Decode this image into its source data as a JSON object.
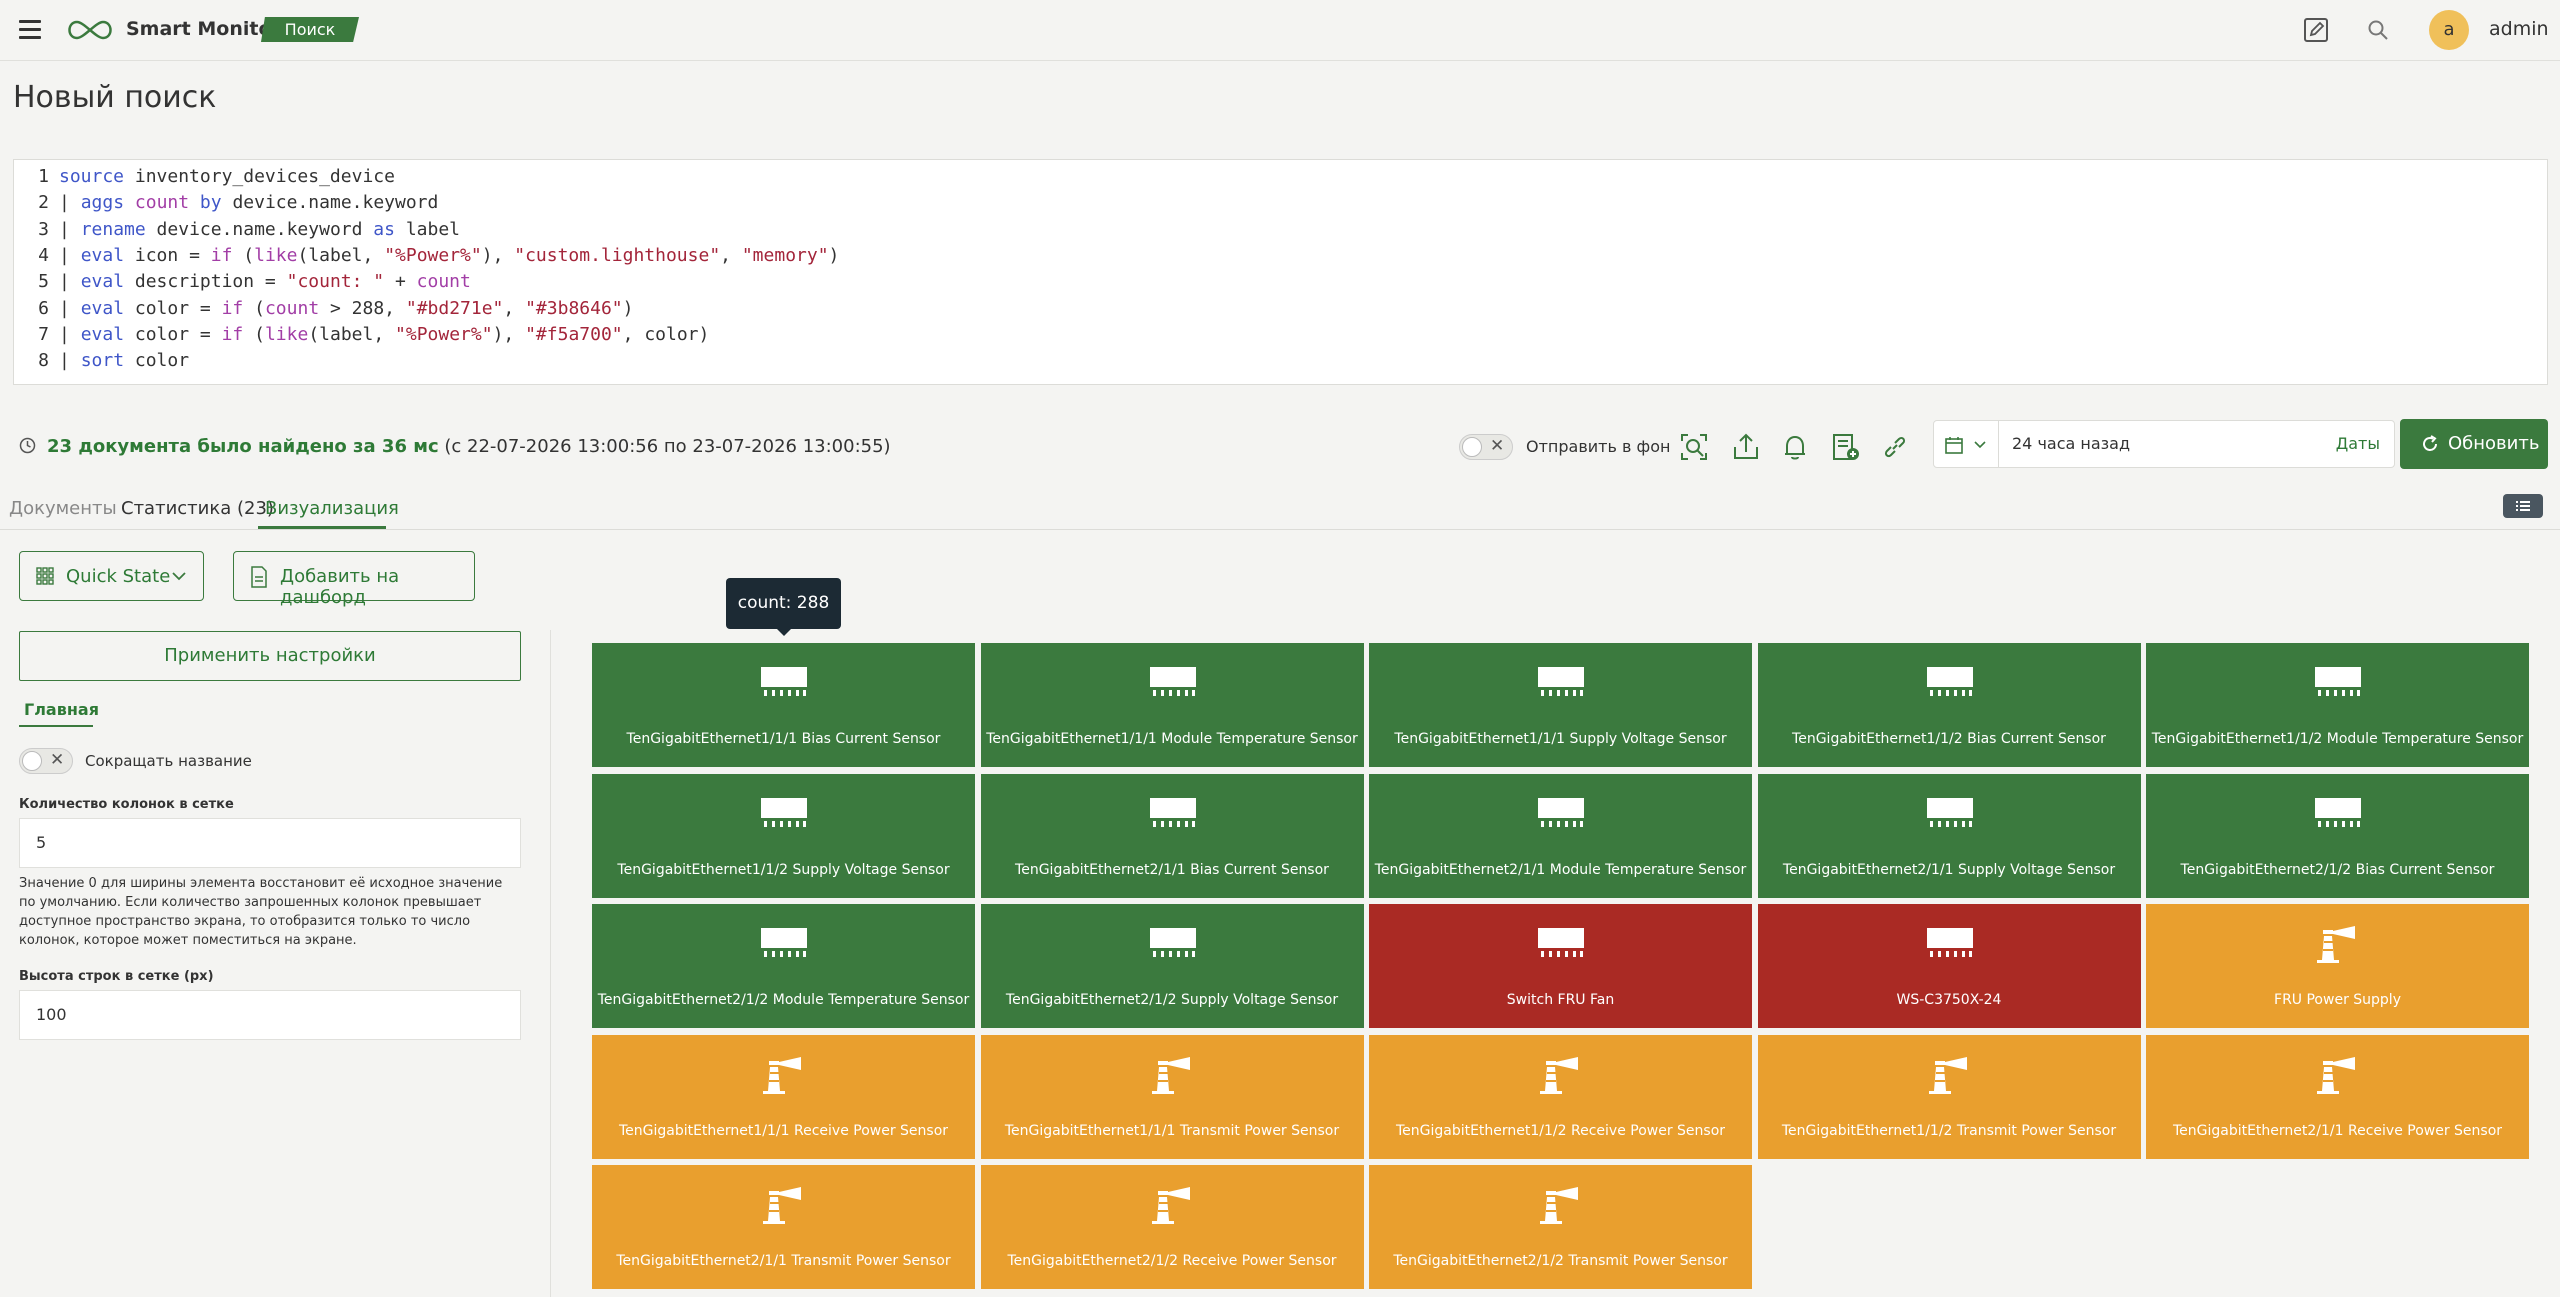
{
  "header": {
    "app_title": "Smart Monitor",
    "nav_badge": "Поиск",
    "avatar_letter": "a",
    "username": "admin"
  },
  "page": {
    "title": "Новый поиск"
  },
  "query": {
    "lines": [
      [
        {
          "t": "source",
          "c": "kw"
        },
        {
          "t": " inventory_devices_device",
          "c": "op"
        }
      ],
      [
        {
          "t": "| ",
          "c": "op"
        },
        {
          "t": "aggs",
          "c": "kw"
        },
        {
          "t": " ",
          "c": "op"
        },
        {
          "t": "count",
          "c": "fn"
        },
        {
          "t": " ",
          "c": "op"
        },
        {
          "t": "by",
          "c": "kw"
        },
        {
          "t": " device.name.keyword",
          "c": "op"
        }
      ],
      [
        {
          "t": "| ",
          "c": "op"
        },
        {
          "t": "rename",
          "c": "kw"
        },
        {
          "t": " device.name.keyword ",
          "c": "op"
        },
        {
          "t": "as",
          "c": "kw"
        },
        {
          "t": " label",
          "c": "op"
        }
      ],
      [
        {
          "t": "| ",
          "c": "op"
        },
        {
          "t": "eval",
          "c": "kw"
        },
        {
          "t": " icon = ",
          "c": "op"
        },
        {
          "t": "if",
          "c": "fn"
        },
        {
          "t": " (",
          "c": "op"
        },
        {
          "t": "like",
          "c": "fn"
        },
        {
          "t": "(label, ",
          "c": "op"
        },
        {
          "t": "\"%Power%\"",
          "c": "str"
        },
        {
          "t": "), ",
          "c": "op"
        },
        {
          "t": "\"custom.lighthouse\"",
          "c": "str"
        },
        {
          "t": ", ",
          "c": "op"
        },
        {
          "t": "\"memory\"",
          "c": "str"
        },
        {
          "t": ")",
          "c": "op"
        }
      ],
      [
        {
          "t": "| ",
          "c": "op"
        },
        {
          "t": "eval",
          "c": "kw"
        },
        {
          "t": " description = ",
          "c": "op"
        },
        {
          "t": "\"count: \"",
          "c": "str"
        },
        {
          "t": " + ",
          "c": "op"
        },
        {
          "t": "count",
          "c": "fn"
        }
      ],
      [
        {
          "t": "| ",
          "c": "op"
        },
        {
          "t": "eval",
          "c": "kw"
        },
        {
          "t": " color = ",
          "c": "op"
        },
        {
          "t": "if",
          "c": "fn"
        },
        {
          "t": " (",
          "c": "op"
        },
        {
          "t": "count",
          "c": "fn"
        },
        {
          "t": " > 288, ",
          "c": "op"
        },
        {
          "t": "\"#bd271e\"",
          "c": "str"
        },
        {
          "t": ", ",
          "c": "op"
        },
        {
          "t": "\"#3b8646\"",
          "c": "str"
        },
        {
          "t": ")",
          "c": "op"
        }
      ],
      [
        {
          "t": "| ",
          "c": "op"
        },
        {
          "t": "eval",
          "c": "kw"
        },
        {
          "t": " color = ",
          "c": "op"
        },
        {
          "t": "if",
          "c": "fn"
        },
        {
          "t": " (",
          "c": "op"
        },
        {
          "t": "like",
          "c": "fn"
        },
        {
          "t": "(label, ",
          "c": "op"
        },
        {
          "t": "\"%Power%\"",
          "c": "str"
        },
        {
          "t": "), ",
          "c": "op"
        },
        {
          "t": "\"#f5a700\"",
          "c": "str"
        },
        {
          "t": ", color)",
          "c": "op"
        }
      ],
      [
        {
          "t": "| ",
          "c": "op"
        },
        {
          "t": "sort",
          "c": "kw"
        },
        {
          "t": " color",
          "c": "op"
        }
      ]
    ]
  },
  "status": {
    "count_text": "23 документа было найдено за 36 мс",
    "range_text": " (с 22-07-2026 13:00:56 по 23-07-2026 13:00:55)",
    "background_label": "Отправить в фон"
  },
  "time": {
    "value": "24 часа назад",
    "dates_link": "Даты"
  },
  "refresh_label": "Обновить",
  "tabs": [
    "Документы",
    "Статистика (23)",
    "Визуализация"
  ],
  "controls": {
    "viz_type": "Quick State",
    "add_dashboard": "Добавить на дашборд"
  },
  "settings": {
    "apply_label": "Применить настройки",
    "main_tab": "Главная",
    "shorten_label": "Сокращать название",
    "cols_label": "Количество колонок в сетке",
    "cols_value": "5",
    "cols_help": "Значение 0 для ширины элемента восстановит её исходное значение по умолчанию. Если количество запрошенных колонок превышает доступное пространство экрана, то отобразится только то число колонок, которое может поместиться на экране.",
    "rows_label": "Высота строк в сетке (px)",
    "rows_value": "100"
  },
  "colors": {
    "green": "#3b7a3e",
    "red": "#aa2a24",
    "orange": "#e99f2e"
  },
  "tiles": [
    {
      "label": "TenGigabitEthernet1/1/1 Bias Current Sensor",
      "icon": "memory-icon",
      "color": "green"
    },
    {
      "label": "TenGigabitEthernet1/1/1 Module Temperature Sensor",
      "icon": "memory-icon",
      "color": "green"
    },
    {
      "label": "TenGigabitEthernet1/1/1 Supply Voltage Sensor",
      "icon": "memory-icon",
      "color": "green"
    },
    {
      "label": "TenGigabitEthernet1/1/2 Bias Current Sensor",
      "icon": "memory-icon",
      "color": "green"
    },
    {
      "label": "TenGigabitEthernet1/1/2 Module Temperature Sensor",
      "icon": "memory-icon",
      "color": "green"
    },
    {
      "label": "TenGigabitEthernet1/1/2 Supply Voltage Sensor",
      "icon": "memory-icon",
      "color": "green"
    },
    {
      "label": "TenGigabitEthernet2/1/1 Bias Current Sensor",
      "icon": "memory-icon",
      "color": "green"
    },
    {
      "label": "TenGigabitEthernet2/1/1 Module Temperature Sensor",
      "icon": "memory-icon",
      "color": "green"
    },
    {
      "label": "TenGigabitEthernet2/1/1 Supply Voltage Sensor",
      "icon": "memory-icon",
      "color": "green"
    },
    {
      "label": "TenGigabitEthernet2/1/2 Bias Current Sensor",
      "icon": "memory-icon",
      "color": "green"
    },
    {
      "label": "TenGigabitEthernet2/1/2 Module Temperature Sensor",
      "icon": "memory-icon",
      "color": "green"
    },
    {
      "label": "TenGigabitEthernet2/1/2 Supply Voltage Sensor",
      "icon": "memory-icon",
      "color": "green"
    },
    {
      "label": "Switch FRU Fan",
      "icon": "memory-icon",
      "color": "red"
    },
    {
      "label": "WS-C3750X-24",
      "icon": "memory-icon",
      "color": "red"
    },
    {
      "label": "FRU Power Supply",
      "icon": "lighthouse-icon",
      "color": "orange"
    },
    {
      "label": "TenGigabitEthernet1/1/1 Receive Power Sensor",
      "icon": "lighthouse-icon",
      "color": "orange"
    },
    {
      "label": "TenGigabitEthernet1/1/1 Transmit Power Sensor",
      "icon": "lighthouse-icon",
      "color": "orange"
    },
    {
      "label": "TenGigabitEthernet1/1/2 Receive Power Sensor",
      "icon": "lighthouse-icon",
      "color": "orange"
    },
    {
      "label": "TenGigabitEthernet1/1/2 Transmit Power Sensor",
      "icon": "lighthouse-icon",
      "color": "orange"
    },
    {
      "label": "TenGigabitEthernet2/1/1 Receive Power Sensor",
      "icon": "lighthouse-icon",
      "color": "orange"
    },
    {
      "label": "TenGigabitEthernet2/1/1 Transmit Power Sensor",
      "icon": "lighthouse-icon",
      "color": "orange"
    },
    {
      "label": "TenGigabitEthernet2/1/2 Receive Power Sensor",
      "icon": "lighthouse-icon",
      "color": "orange"
    },
    {
      "label": "TenGigabitEthernet2/1/2 Transmit Power Sensor",
      "icon": "lighthouse-icon",
      "color": "orange"
    }
  ],
  "tooltip": "count: 288"
}
